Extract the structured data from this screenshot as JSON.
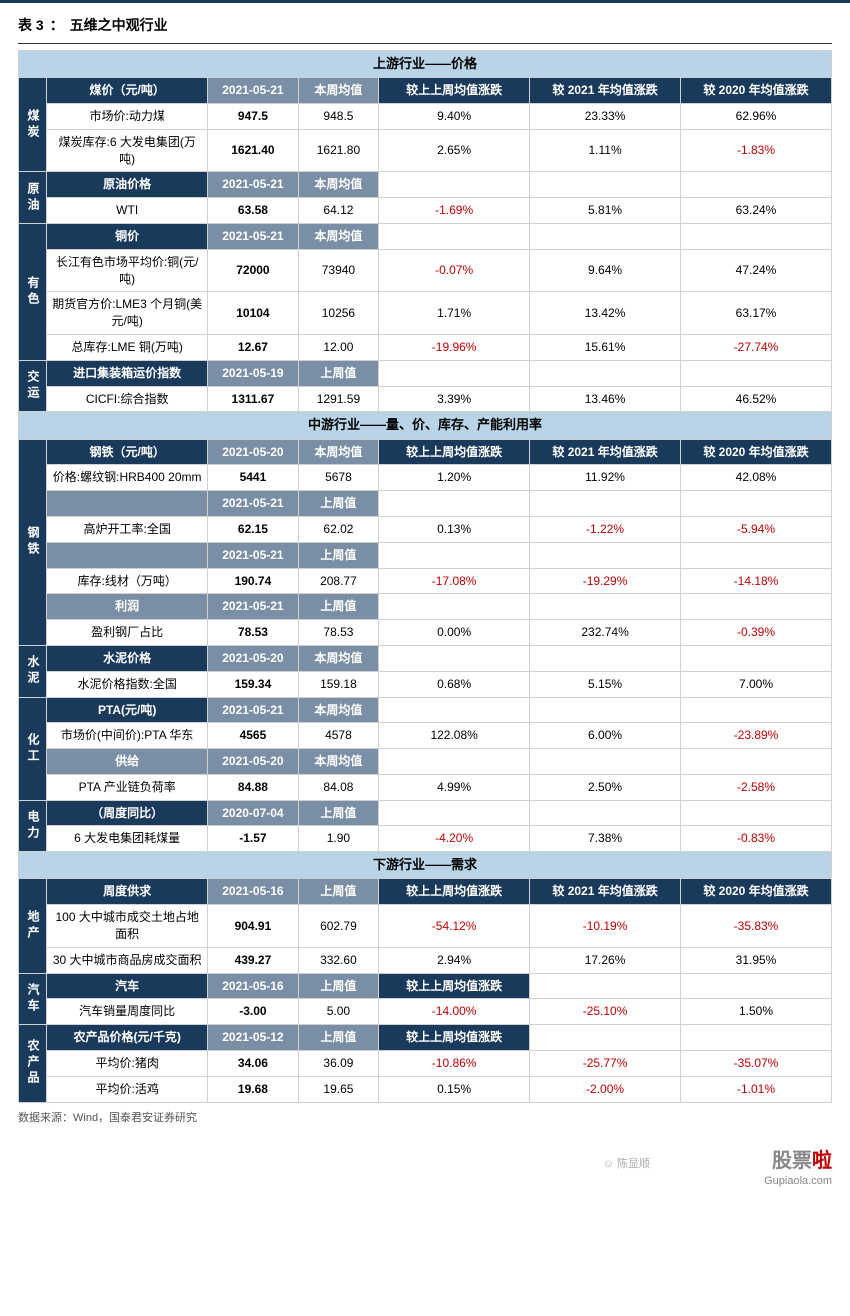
{
  "title_prefix": "表 3",
  "title_text": "五维之中观行业",
  "colors": {
    "navy": "#1a3a5c",
    "section_bg": "#b8d4e6",
    "sub_header_bg": "#7a8fa5",
    "negative": "#c00000",
    "border": "#d0d0d0"
  },
  "sections": [
    {
      "title": "上游行业——价格",
      "groups": [
        {
          "category": "煤炭",
          "header": [
            "煤价（元/吨）",
            "2021-05-21",
            "本周均值",
            "较上上周均值涨跌",
            "较 2021 年均值涨跌",
            "较 2020 年均值涨跌"
          ],
          "rows": [
            {
              "label": "市场价:动力煤",
              "v1": "947.5",
              "v2": "948.5",
              "d1": "9.40%",
              "d2": "23.33%",
              "d3": "62.96%"
            },
            {
              "label": "煤炭库存:6 大发电集团(万吨)",
              "v1": "1621.40",
              "v2": "1621.80",
              "d1": "2.65%",
              "d2": "1.11%",
              "d3": "-1.83%"
            }
          ]
        },
        {
          "category": "原油",
          "header": [
            "原油价格",
            "2021-05-21",
            "本周均值",
            "",
            "",
            ""
          ],
          "rows": [
            {
              "label": "WTI",
              "v1": "63.58",
              "v2": "64.12",
              "d1": "-1.69%",
              "d2": "5.81%",
              "d3": "63.24%"
            }
          ]
        },
        {
          "category": "有色",
          "header": [
            "铜价",
            "2021-05-21",
            "本周均值",
            "",
            "",
            ""
          ],
          "rows": [
            {
              "label": "长江有色市场平均价:铜(元/吨)",
              "v1": "72000",
              "v2": "73940",
              "d1": "-0.07%",
              "d2": "9.64%",
              "d3": "47.24%"
            },
            {
              "label": "期货官方价:LME3 个月铜(美元/吨)",
              "v1": "10104",
              "v2": "10256",
              "d1": "1.71%",
              "d2": "13.42%",
              "d3": "63.17%"
            },
            {
              "label": "总库存:LME 铜(万吨)",
              "v1": "12.67",
              "v2": "12.00",
              "d1": "-19.96%",
              "d2": "15.61%",
              "d3": "-27.74%"
            }
          ]
        },
        {
          "category": "交运",
          "header": [
            "进口集装箱运价指数",
            "2021-05-19",
            "上周值",
            "",
            "",
            ""
          ],
          "rows": [
            {
              "label": "CICFI:综合指数",
              "v1": "1311.67",
              "v2": "1291.59",
              "d1": "3.39%",
              "d2": "13.46%",
              "d3": "46.52%"
            }
          ]
        }
      ]
    },
    {
      "title": "中游行业——量、价、库存、产能利用率",
      "groups": [
        {
          "category": "钢铁",
          "header": [
            "钢铁（元/吨）",
            "2021-05-20",
            "本周均值",
            "较上上周均值涨跌",
            "较 2021 年均值涨跌",
            "较 2020 年均值涨跌"
          ],
          "rows": [
            {
              "label": "价格:螺纹钢:HRB400 20mm",
              "v1": "5441",
              "v2": "5678",
              "d1": "1.20%",
              "d2": "11.92%",
              "d3": "42.08%"
            }
          ],
          "sub_headers_rows": [
            {
              "header": [
                "",
                "2021-05-21",
                "上周值",
                "",
                "",
                ""
              ],
              "row": {
                "label": "高炉开工率:全国",
                "v1": "62.15",
                "v2": "62.02",
                "d1": "0.13%",
                "d2": "-1.22%",
                "d3": "-5.94%"
              }
            },
            {
              "header": [
                "",
                "2021-05-21",
                "上周值",
                "",
                "",
                ""
              ],
              "row": {
                "label": "库存:线材（万吨）",
                "v1": "190.74",
                "v2": "208.77",
                "d1": "-17.08%",
                "d2": "-19.29%",
                "d3": "-14.18%"
              }
            },
            {
              "header": [
                "利润",
                "2021-05-21",
                "上周值",
                "",
                "",
                ""
              ],
              "row": {
                "label": "盈利钢厂占比",
                "v1": "78.53",
                "v2": "78.53",
                "d1": "0.00%",
                "d2": "232.74%",
                "d3": "-0.39%"
              }
            }
          ]
        },
        {
          "category": "水泥",
          "header": [
            "水泥价格",
            "2021-05-20",
            "本周均值",
            "",
            "",
            ""
          ],
          "rows": [
            {
              "label": "水泥价格指数:全国",
              "v1": "159.34",
              "v2": "159.18",
              "d1": "0.68%",
              "d2": "5.15%",
              "d3": "7.00%"
            }
          ]
        },
        {
          "category": "化工",
          "header": [
            "PTA(元/吨)",
            "2021-05-21",
            "本周均值",
            "",
            "",
            ""
          ],
          "rows": [
            {
              "label": "市场价(中间价):PTA 华东",
              "v1": "4565",
              "v2": "4578",
              "d1": "122.08%",
              "d2": "6.00%",
              "d3": "-23.89%"
            }
          ],
          "sub_headers_rows": [
            {
              "header": [
                "供给",
                "2021-05-20",
                "本周均值",
                "",
                "",
                ""
              ],
              "row": {
                "label": "PTA 产业链负荷率",
                "v1": "84.88",
                "v2": "84.08",
                "d1": "4.99%",
                "d2": "2.50%",
                "d3": "-2.58%"
              }
            }
          ]
        },
        {
          "category": "电力",
          "header": [
            "（周度同比）",
            "2020-07-04",
            "上周值",
            "",
            "",
            ""
          ],
          "rows": [
            {
              "label": "6 大发电集团耗煤量",
              "v1": "-1.57",
              "v2": "1.90",
              "d1": "-4.20%",
              "d2": "7.38%",
              "d3": "-0.83%"
            }
          ]
        }
      ]
    },
    {
      "title": "下游行业——需求",
      "groups": [
        {
          "category": "地产",
          "header": [
            "周度供求",
            "2021-05-16",
            "上周值",
            "较上上周均值涨跌",
            "较 2021 年均值涨跌",
            "较 2020 年均值涨跌"
          ],
          "rows": [
            {
              "label": "100 大中城市成交土地占地面积",
              "v1": "904.91",
              "v2": "602.79",
              "d1": "-54.12%",
              "d2": "-10.19%",
              "d3": "-35.83%"
            },
            {
              "label": "30 大中城市商品房成交面积",
              "v1": "439.27",
              "v2": "332.60",
              "d1": "2.94%",
              "d2": "17.26%",
              "d3": "31.95%"
            }
          ]
        },
        {
          "category": "汽车",
          "header": [
            "汽车",
            "2021-05-16",
            "上周值",
            "较上上周均值涨跌",
            "",
            ""
          ],
          "rows": [
            {
              "label": "汽车销量周度同比",
              "v1": "-3.00",
              "v2": "5.00",
              "d1": "-14.00%",
              "d2": "-25.10%",
              "d3": "1.50%"
            }
          ]
        },
        {
          "category": "农产品",
          "header": [
            "农产品价格(元/千克)",
            "2021-05-12",
            "上周值",
            "较上上周均值涨跌",
            "",
            ""
          ],
          "rows": [
            {
              "label": "平均价:猪肉",
              "v1": "34.06",
              "v2": "36.09",
              "d1": "-10.86%",
              "d2": "-25.77%",
              "d3": "-35.07%"
            },
            {
              "label": "平均价:活鸡",
              "v1": "19.68",
              "v2": "19.65",
              "d1": "0.15%",
              "d2": "-2.00%",
              "d3": "-1.01%"
            }
          ]
        }
      ]
    }
  ],
  "footer": "数据来源：Wind，国泰君安证券研究",
  "wm_wechat": "☺ 陈显顺",
  "wm_right_1": "股票",
  "wm_right_2": "啦",
  "wm_sub": "Gupiaola.com"
}
